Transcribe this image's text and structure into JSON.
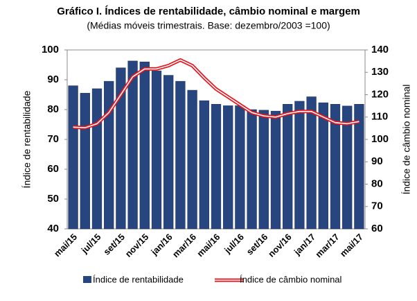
{
  "chart_data": {
    "type": "bar_line",
    "title": "Gráfico I. Índices de rentabilidade, câmbio nominal e margem",
    "subtitle": "(Médias móveis trimestrais. Base: dezembro/2003 =100)",
    "y_label": "Índice de rentabilidade",
    "y2_label": "Índice de câmbio nominal",
    "categories": [
      "mai/15",
      null,
      "jul/15",
      null,
      "set/15",
      null,
      "nov/15",
      null,
      "jan/16",
      null,
      "mar/16",
      null,
      "mai/16",
      null,
      "jul/16",
      null,
      "set/16",
      null,
      "nov/16",
      null,
      "jan/17",
      null,
      "mar/17",
      null,
      "mai/17"
    ],
    "series": [
      {
        "name": "Índice de rentabilidade",
        "color": "#27457f",
        "values": [
          88,
          85.5,
          87,
          89.5,
          94,
          96.3,
          96,
          93,
          91.5,
          89.5,
          86.5,
          83,
          81.8,
          81.3,
          81.3,
          80,
          79.8,
          79.5,
          81.8,
          82.8,
          84.3,
          82.3,
          81.8,
          81.2,
          81.8
        ]
      },
      {
        "name": "Índice de câmbio nominal",
        "color": "#e8141c",
        "axis": "y2",
        "values": [
          105.5,
          105.2,
          107,
          112,
          120,
          128,
          131.5,
          131.5,
          133,
          135.5,
          133,
          127.5,
          122.5,
          119,
          115.5,
          112,
          110.5,
          110,
          111.5,
          112.5,
          112.5,
          110,
          107.5,
          107,
          108
        ]
      }
    ],
    "ylim": [
      40,
      100
    ],
    "yticks": [
      40,
      50,
      60,
      70,
      80,
      90,
      100
    ],
    "y2lim": [
      60,
      140
    ],
    "y2ticks": [
      60,
      70,
      80,
      90,
      100,
      110,
      120,
      130,
      140
    ],
    "legend": "bottom"
  }
}
